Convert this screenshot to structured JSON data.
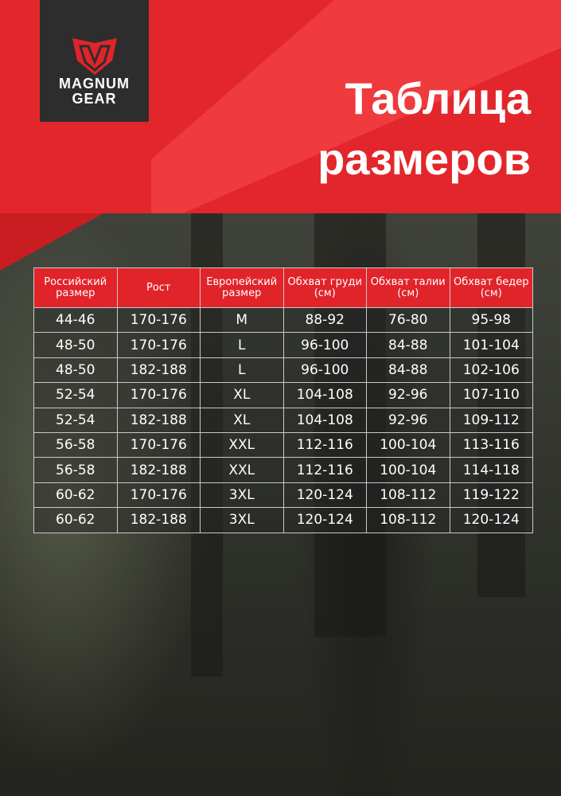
{
  "brand": {
    "line1": "MAGNUM",
    "line2": "GEAR",
    "logo_icon": "shield-m-icon"
  },
  "title": {
    "line1": "Таблица",
    "line2": "размеров"
  },
  "colors": {
    "red": "#e3262b",
    "logo_bg": "#2e2d2d"
  },
  "table": {
    "headers": [
      "Российский размер",
      "Рост",
      "Европейский размер",
      "Обхват груди (см)",
      "Обхват талии (см)",
      "Обхват бедер (см)"
    ],
    "rows": [
      [
        "44-46",
        "170-176",
        "M",
        "88-92",
        "76-80",
        "95-98"
      ],
      [
        "48-50",
        "170-176",
        "L",
        "96-100",
        "84-88",
        "101-104"
      ],
      [
        "48-50",
        "182-188",
        "L",
        "96-100",
        "84-88",
        "102-106"
      ],
      [
        "52-54",
        "170-176",
        "XL",
        "104-108",
        "92-96",
        "107-110"
      ],
      [
        "52-54",
        "182-188",
        "XL",
        "104-108",
        "92-96",
        "109-112"
      ],
      [
        "56-58",
        "170-176",
        "XXL",
        "112-116",
        "100-104",
        "113-116"
      ],
      [
        "56-58",
        "182-188",
        "XXL",
        "112-116",
        "100-104",
        "114-118"
      ],
      [
        "60-62",
        "170-176",
        "3XL",
        "120-124",
        "108-112",
        "119-122"
      ],
      [
        "60-62",
        "182-188",
        "3XL",
        "120-124",
        "108-112",
        "120-124"
      ]
    ]
  }
}
